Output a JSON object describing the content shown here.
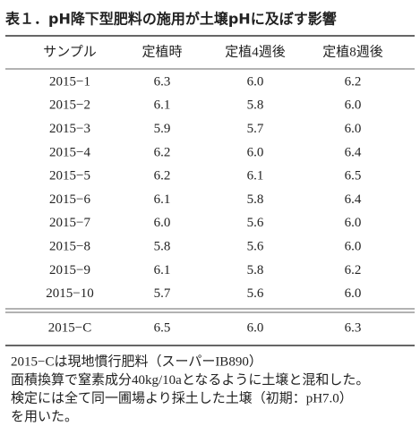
{
  "title": "表１．pH降下型肥料の施用が土壌pHに及ぼす影響",
  "table": {
    "header": [
      "サンプル",
      "定植時",
      "定植4週後",
      "定植8週後"
    ],
    "rows": [
      [
        "2015−1",
        "6.3",
        "6.0",
        "6.2"
      ],
      [
        "2015−2",
        "6.1",
        "5.8",
        "6.0"
      ],
      [
        "2015−3",
        "5.9",
        "5.7",
        "6.0"
      ],
      [
        "2015−4",
        "6.2",
        "6.0",
        "6.4"
      ],
      [
        "2015−5",
        "6.2",
        "6.1",
        "6.5"
      ],
      [
        "2015−6",
        "6.1",
        "5.8",
        "6.4"
      ],
      [
        "2015−7",
        "6.0",
        "5.6",
        "6.0"
      ],
      [
        "2015−8",
        "5.8",
        "5.6",
        "6.0"
      ],
      [
        "2015−9",
        "6.1",
        "5.8",
        "6.2"
      ],
      [
        "2015−10",
        "5.7",
        "5.6",
        "6.0"
      ]
    ],
    "control": [
      "2015−C",
      "6.5",
      "6.0",
      "6.3"
    ]
  },
  "notes": [
    "2015−Cは現地慣行肥料（スーパーIB890）",
    "面積換算で窒素成分40kg/10aとなるように土壌と混和した。",
    "検定には全て同一圃場より採土した土壌（初期：pH7.0）",
    "を用いた。"
  ]
}
